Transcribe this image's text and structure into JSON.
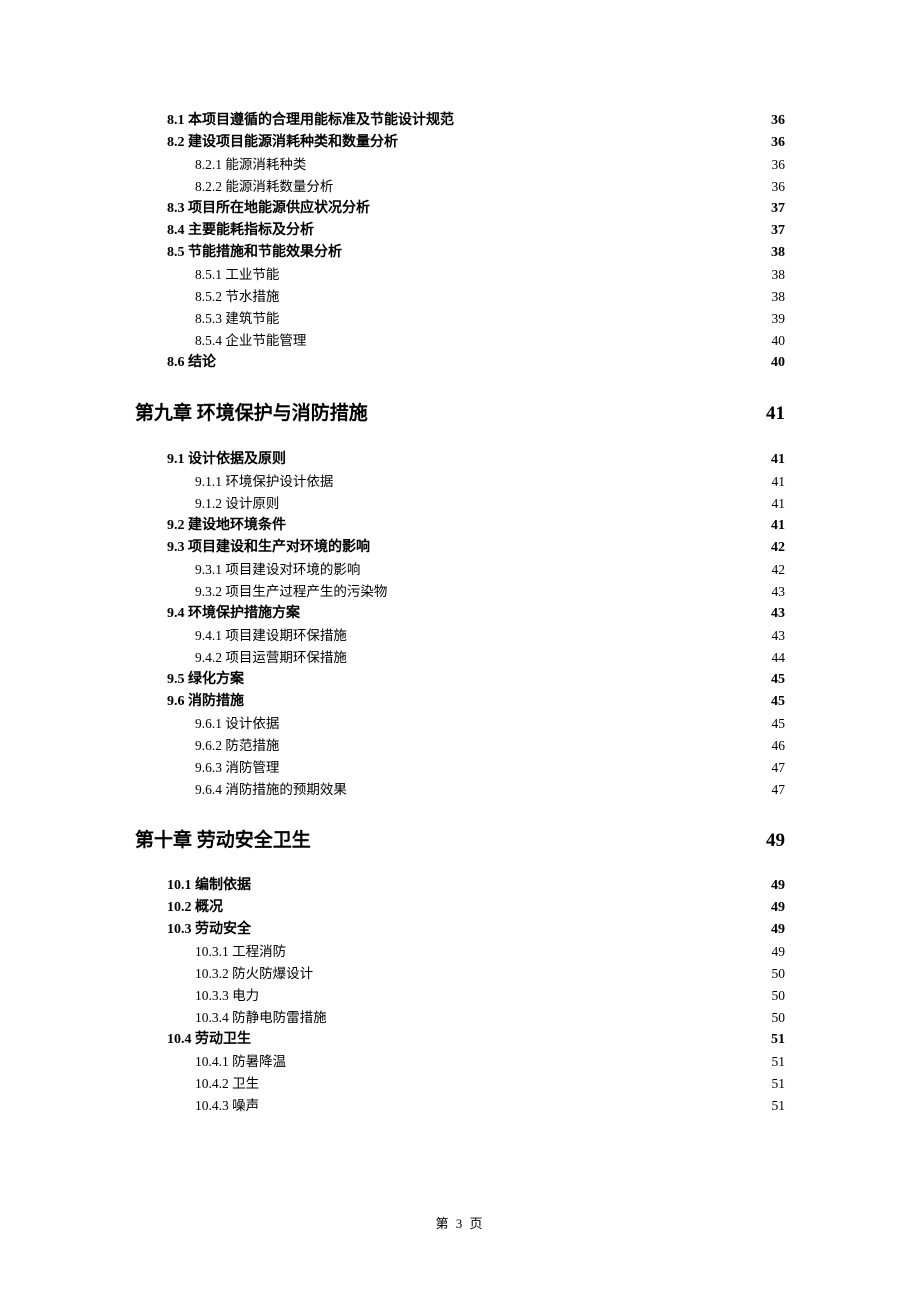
{
  "footer": "第 3 页",
  "toc": [
    {
      "level": "section",
      "label": "8.1 本项目遵循的合理用能标准及节能设计规范",
      "page": "36"
    },
    {
      "level": "section",
      "label": "8.2 建设项目能源消耗种类和数量分析",
      "page": "36"
    },
    {
      "level": "sub",
      "label": "8.2.1 能源消耗种类",
      "page": "36"
    },
    {
      "level": "sub",
      "label": "8.2.2 能源消耗数量分析",
      "page": "36"
    },
    {
      "level": "section",
      "label": "8.3 项目所在地能源供应状况分析",
      "page": "37"
    },
    {
      "level": "section",
      "label": "8.4 主要能耗指标及分析",
      "page": "37"
    },
    {
      "level": "section",
      "label": "8.5 节能措施和节能效果分析",
      "page": "38"
    },
    {
      "level": "sub",
      "label": "8.5.1 工业节能",
      "page": "38"
    },
    {
      "level": "sub",
      "label": "8.5.2 节水措施",
      "page": "38"
    },
    {
      "level": "sub",
      "label": "8.5.3 建筑节能",
      "page": "39"
    },
    {
      "level": "sub",
      "label": "8.5.4 企业节能管理",
      "page": "40"
    },
    {
      "level": "section",
      "label": "8.6 结论",
      "page": "40"
    },
    {
      "level": "chapter",
      "label": "第九章  环境保护与消防措施",
      "page": "41"
    },
    {
      "level": "section",
      "label": "9.1 设计依据及原则",
      "page": "41"
    },
    {
      "level": "sub",
      "label": "9.1.1 环境保护设计依据",
      "page": "41"
    },
    {
      "level": "sub",
      "label": "9.1.2 设计原则",
      "page": "41"
    },
    {
      "level": "section",
      "label": "9.2 建设地环境条件",
      "page": "41"
    },
    {
      "level": "section",
      "label": "9.3  项目建设和生产对环境的影响",
      "page": "42"
    },
    {
      "level": "sub",
      "label": "9.3.1  项目建设对环境的影响",
      "page": "42"
    },
    {
      "level": "sub",
      "label": "9.3.2 项目生产过程产生的污染物",
      "page": "43"
    },
    {
      "level": "section",
      "label": "9.4  环境保护措施方案",
      "page": "43"
    },
    {
      "level": "sub",
      "label": "9.4.1  项目建设期环保措施",
      "page": "43"
    },
    {
      "level": "sub",
      "label": "9.4.2  项目运营期环保措施",
      "page": "44"
    },
    {
      "level": "section",
      "label": "9.5 绿化方案",
      "page": "45"
    },
    {
      "level": "section",
      "label": "9.6 消防措施",
      "page": "45"
    },
    {
      "level": "sub",
      "label": "9.6.1 设计依据",
      "page": "45"
    },
    {
      "level": "sub",
      "label": "9.6.2 防范措施",
      "page": "46"
    },
    {
      "level": "sub",
      "label": "9.6.3 消防管理",
      "page": "47"
    },
    {
      "level": "sub",
      "label": "9.6.4 消防措施的预期效果",
      "page": "47"
    },
    {
      "level": "chapter",
      "label": "第十章  劳动安全卫生",
      "page": "49"
    },
    {
      "level": "section",
      "label": "10.1  编制依据",
      "page": "49"
    },
    {
      "level": "section",
      "label": "10.2 概况",
      "page": "49"
    },
    {
      "level": "section",
      "label": "10.3  劳动安全",
      "page": "49"
    },
    {
      "level": "sub",
      "label": "10.3.1 工程消防",
      "page": "49"
    },
    {
      "level": "sub",
      "label": "10.3.2 防火防爆设计",
      "page": "50"
    },
    {
      "level": "sub",
      "label": "10.3.3 电力",
      "page": "50"
    },
    {
      "level": "sub",
      "label": "10.3.4 防静电防雷措施",
      "page": "50"
    },
    {
      "level": "section",
      "label": "10.4 劳动卫生",
      "page": "51"
    },
    {
      "level": "sub",
      "label": "10.4.1 防暑降温",
      "page": "51"
    },
    {
      "level": "sub",
      "label": "10.4.2 卫生",
      "page": "51"
    },
    {
      "level": "sub",
      "label": "10.4.3 噪声",
      "page": "51"
    }
  ]
}
